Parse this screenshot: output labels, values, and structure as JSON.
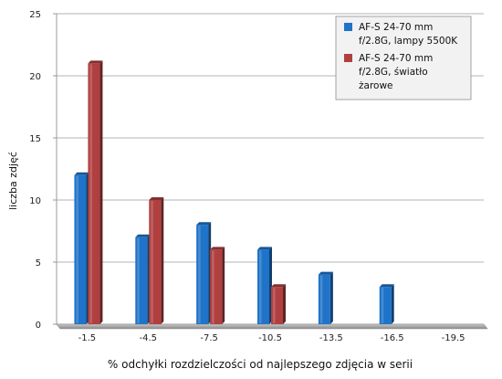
{
  "chart_data": {
    "type": "bar",
    "categories": [
      "-1.5",
      "-4.5",
      "-7.5",
      "-10.5",
      "-13.5",
      "-16.5",
      "-19.5"
    ],
    "series": [
      {
        "name_lines": [
          "AF-S 24-70 mm",
          "f/2.8G, lampy 5500K"
        ],
        "color": "#1f73c8",
        "values": [
          12,
          7,
          8,
          6,
          4,
          3,
          0
        ]
      },
      {
        "name_lines": [
          "AF-S 24-70 mm",
          "f/2.8G, światło",
          "żarowe"
        ],
        "color": "#b04040",
        "values": [
          21,
          10,
          6,
          3,
          0,
          0,
          0
        ]
      }
    ],
    "xlabel": "% odchyłki rozdzielczości od najlepszego zdjęcia w serii",
    "ylabel": "liczba zdjęć",
    "ylim": [
      0,
      25
    ],
    "yticks": [
      0,
      5,
      10,
      15,
      20,
      25
    ],
    "grid": true,
    "legend_position": "top-right"
  }
}
